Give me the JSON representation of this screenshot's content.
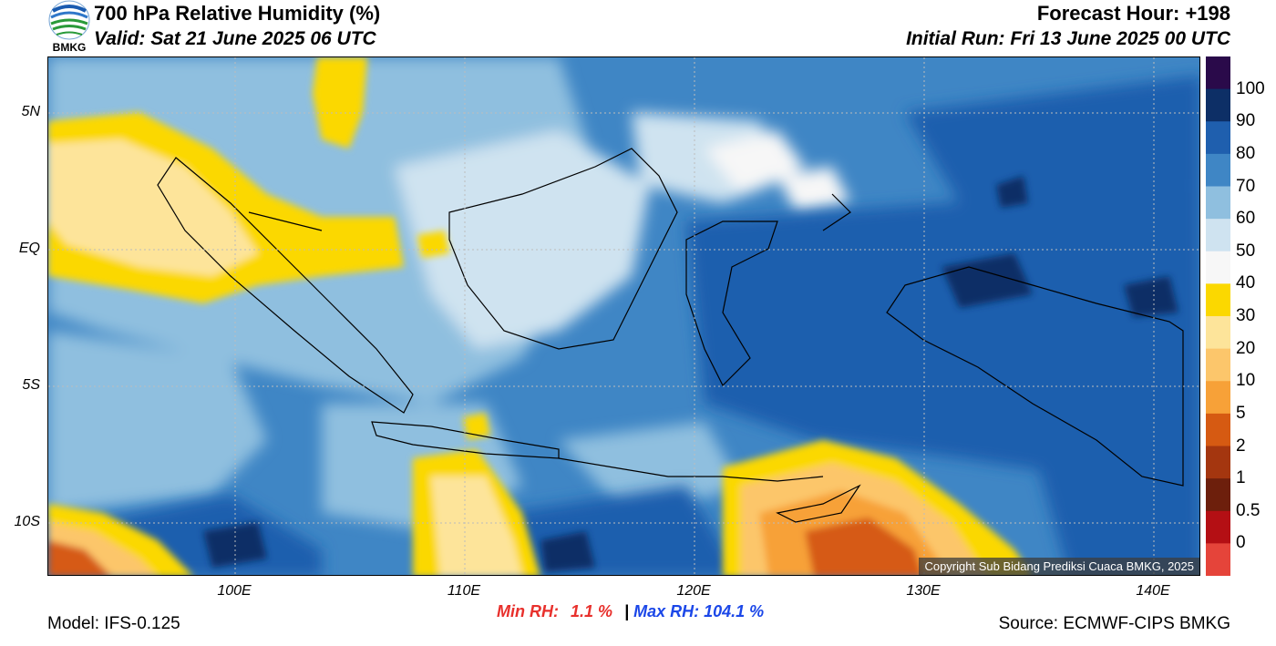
{
  "header": {
    "title": "700 hPa Relative Humidity (%)",
    "valid": "Valid: Sat 21 June 2025 06 UTC",
    "forecast_hour": "Forecast Hour: +198",
    "initial_run": "Initial Run: Fri 13 June 2025 00 UTC",
    "logo_text": "BMKG"
  },
  "axes": {
    "lat_labels": [
      "5N",
      "EQ",
      "5S",
      "10S"
    ],
    "lon_labels": [
      "100E",
      "110E",
      "120E",
      "130E",
      "140E"
    ]
  },
  "colorbar": {
    "labels": [
      "100",
      "90",
      "80",
      "70",
      "60",
      "50",
      "40",
      "30",
      "20",
      "10",
      "5",
      "2",
      "1",
      "0.5",
      "0"
    ],
    "colors": [
      "#2a0a4a",
      "#0d2f66",
      "#1f5fae",
      "#3f86c5",
      "#8fbfdf",
      "#cfe3f0",
      "#f7f7f7",
      "#fbd800",
      "#fde49a",
      "#fcc66b",
      "#f7a138",
      "#d65a12",
      "#a4360f",
      "#6d1f0c",
      "#b40f14",
      "#e5443a"
    ]
  },
  "stats": {
    "min_label": "Min RH:",
    "min_value": "1.1 %",
    "separator": "|",
    "max_label": "Max RH:",
    "max_value": "104.1 %"
  },
  "footer": {
    "model": "Model: IFS-0.125",
    "source": "Source: ECMWF-CIPS BMKG",
    "copyright": "Copyright Sub Bidang Prediksi Cuaca BMKG, 2025"
  }
}
